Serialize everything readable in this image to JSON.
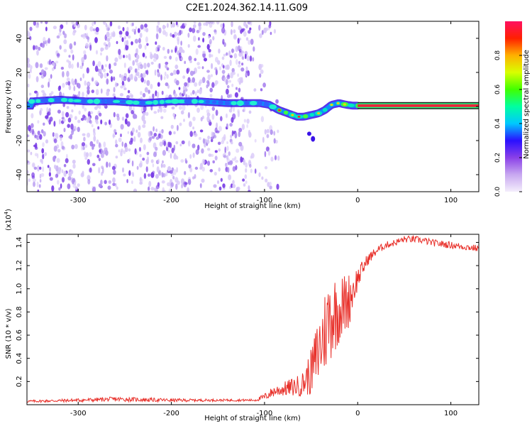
{
  "title": "C2E1.2024.362.14.11.G09",
  "colors": {
    "snr_line": "#e8302a",
    "dot_light": "#d8c8f8",
    "dot_mid": "#b090f0",
    "dot_dark": "#7a3ee6",
    "track_band": "#222222",
    "track_core": "#e8283c"
  },
  "chart_data": [
    {
      "type": "heatmap",
      "id": "spectrogram",
      "xlabel": "Height of straight line (km)",
      "ylabel": "Frequency (Hz)",
      "xlim": [
        -355,
        130
      ],
      "ylim": [
        -50,
        50
      ],
      "xticks": [
        -300,
        -200,
        -100,
        0,
        100
      ],
      "yticks": [
        -40,
        -20,
        0,
        20,
        40
      ],
      "noise_region_x": [
        -355,
        -100
      ],
      "track": {
        "x": [
          -350,
          -320,
          -290,
          -260,
          -230,
          -200,
          -170,
          -140,
          -120,
          -105,
          -95,
          -85,
          -75,
          -65,
          -58,
          -50,
          -42,
          -35,
          -28,
          -20,
          -12,
          -5,
          0,
          130
        ],
        "freq": [
          3,
          4,
          3,
          3,
          2,
          3,
          3,
          2,
          2,
          2,
          1,
          -2,
          -4,
          -6,
          -6,
          -5,
          -4,
          -2,
          1,
          2,
          1,
          0.5,
          0.5,
          0.5
        ]
      },
      "colorbar": {
        "label": "Normalized spectral amplitude",
        "range": [
          0,
          1
        ],
        "ticks": [
          "0.0",
          "0.2",
          "0.4",
          "0.6",
          "0.8"
        ],
        "tick_values": [
          0.0,
          0.2,
          0.4,
          0.6,
          0.8
        ],
        "colors": [
          "#f4eefc",
          "#c8a8f0",
          "#8a40e8",
          "#2a10ff",
          "#00c8ff",
          "#00ffa0",
          "#40ff00",
          "#d8ff00",
          "#ffb000",
          "#ff2000",
          "#ff1060"
        ]
      }
    },
    {
      "type": "line",
      "id": "snr",
      "xlabel": "Height of straight line (km)",
      "ylabel": "SNR (10 * v/v)",
      "y_multiplier": "(x10",
      "y_multiplier_exp": "4",
      "y_multiplier_close": ")",
      "xlim": [
        -355,
        130
      ],
      "ylim": [
        0,
        1.47
      ],
      "xticks": [
        -300,
        -200,
        -100,
        0,
        100
      ],
      "yticks": [
        0.2,
        0.4,
        0.6,
        0.8,
        1.0,
        1.2,
        1.4
      ],
      "ytick_labels": [
        "0.2",
        "0.4",
        "0.6",
        "0.8",
        "1.0",
        "1.2",
        "1.4"
      ],
      "series": [
        {
          "name": "SNR",
          "x": [
            -355,
            -300,
            -260,
            -200,
            -150,
            -110,
            -100,
            -90,
            -80,
            -70,
            -60,
            -50,
            -40,
            -30,
            -20,
            -10,
            0,
            10,
            20,
            30,
            40,
            50,
            60,
            70,
            80,
            90,
            100,
            110,
            120,
            130
          ],
          "y": [
            0.03,
            0.04,
            0.05,
            0.04,
            0.04,
            0.04,
            0.07,
            0.12,
            0.14,
            0.16,
            0.18,
            0.3,
            0.55,
            0.8,
            0.85,
            0.92,
            1.1,
            1.25,
            1.33,
            1.38,
            1.4,
            1.43,
            1.43,
            1.42,
            1.4,
            1.39,
            1.38,
            1.37,
            1.36,
            1.35
          ],
          "noise": [
            0.01,
            0.015,
            0.02,
            0.015,
            0.01,
            0.01,
            0.03,
            0.05,
            0.06,
            0.08,
            0.1,
            0.2,
            0.35,
            0.4,
            0.3,
            0.25,
            0.1,
            0.05,
            0.04,
            0.03,
            0.03,
            0.03,
            0.03,
            0.03,
            0.03,
            0.03,
            0.03,
            0.03,
            0.03,
            0.03
          ]
        }
      ]
    }
  ]
}
